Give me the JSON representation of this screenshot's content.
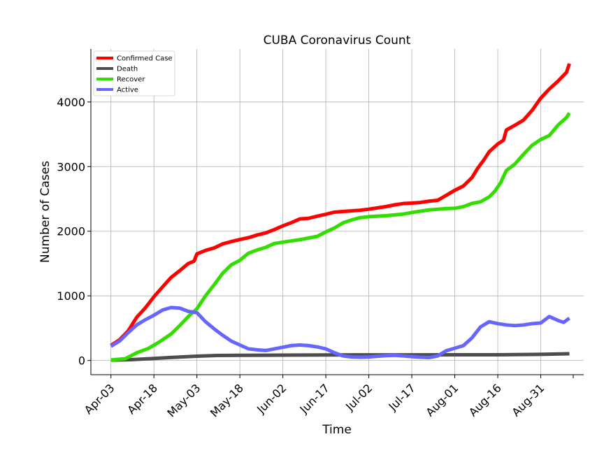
{
  "chart_data": {
    "type": "line",
    "title": "CUBA Coronavirus Count",
    "xlabel": "Time",
    "ylabel": "Number of Cases",
    "xlim": [
      "2020-03-27",
      "2020-09-15"
    ],
    "ylim": [
      -220,
      4820
    ],
    "x_ticks": [
      {
        "date": "2020-04-03",
        "label": "Apr-03"
      },
      {
        "date": "2020-04-18",
        "label": "Apr-18"
      },
      {
        "date": "2020-05-03",
        "label": "May-03"
      },
      {
        "date": "2020-05-18",
        "label": "May-18"
      },
      {
        "date": "2020-06-02",
        "label": "Jun-02"
      },
      {
        "date": "2020-06-17",
        "label": "Jun-17"
      },
      {
        "date": "2020-07-02",
        "label": "Jul-02"
      },
      {
        "date": "2020-07-17",
        "label": "Jul-17"
      },
      {
        "date": "2020-08-01",
        "label": "Aug-01"
      },
      {
        "date": "2020-08-16",
        "label": "Aug-16"
      },
      {
        "date": "2020-08-31",
        "label": "Aug-31"
      }
    ],
    "y_ticks": [
      0,
      1000,
      2000,
      3000,
      4000
    ],
    "grid": true,
    "legend_position": "top-left",
    "series": [
      {
        "name": "Confirmed Case",
        "color": "#ff0000",
        "points": [
          [
            "2020-04-03",
            233
          ],
          [
            "2020-04-06",
            320
          ],
          [
            "2020-04-09",
            457
          ],
          [
            "2020-04-12",
            669
          ],
          [
            "2020-04-15",
            814
          ],
          [
            "2020-04-18",
            986
          ],
          [
            "2020-04-21",
            1137
          ],
          [
            "2020-04-24",
            1285
          ],
          [
            "2020-04-27",
            1389
          ],
          [
            "2020-04-30",
            1501
          ],
          [
            "2020-05-02",
            1537
          ],
          [
            "2020-05-03",
            1649
          ],
          [
            "2020-05-06",
            1703
          ],
          [
            "2020-05-09",
            1741
          ],
          [
            "2020-05-12",
            1804
          ],
          [
            "2020-05-15",
            1840
          ],
          [
            "2020-05-18",
            1872
          ],
          [
            "2020-05-21",
            1900
          ],
          [
            "2020-05-24",
            1941
          ],
          [
            "2020-05-27",
            1974
          ],
          [
            "2020-05-30",
            2025
          ],
          [
            "2020-06-02",
            2083
          ],
          [
            "2020-06-05",
            2133
          ],
          [
            "2020-06-08",
            2191
          ],
          [
            "2020-06-11",
            2200
          ],
          [
            "2020-06-14",
            2233
          ],
          [
            "2020-06-17",
            2262
          ],
          [
            "2020-06-20",
            2295
          ],
          [
            "2020-06-23",
            2305
          ],
          [
            "2020-06-26",
            2315
          ],
          [
            "2020-06-29",
            2325
          ],
          [
            "2020-07-02",
            2341
          ],
          [
            "2020-07-05",
            2361
          ],
          [
            "2020-07-08",
            2381
          ],
          [
            "2020-07-11",
            2408
          ],
          [
            "2020-07-14",
            2428
          ],
          [
            "2020-07-17",
            2435
          ],
          [
            "2020-07-20",
            2445
          ],
          [
            "2020-07-23",
            2465
          ],
          [
            "2020-07-26",
            2478
          ],
          [
            "2020-07-29",
            2555
          ],
          [
            "2020-08-01",
            2633
          ],
          [
            "2020-08-04",
            2700
          ],
          [
            "2020-08-07",
            2829
          ],
          [
            "2020-08-09",
            2975
          ],
          [
            "2020-08-11",
            3093
          ],
          [
            "2020-08-13",
            3229
          ],
          [
            "2020-08-16",
            3350
          ],
          [
            "2020-08-18",
            3408
          ],
          [
            "2020-08-19",
            3566
          ],
          [
            "2020-08-22",
            3640
          ],
          [
            "2020-08-25",
            3720
          ],
          [
            "2020-08-28",
            3870
          ],
          [
            "2020-08-31",
            4059
          ],
          [
            "2020-09-03",
            4200
          ],
          [
            "2020-09-06",
            4321
          ],
          [
            "2020-09-09",
            4459
          ],
          [
            "2020-09-10",
            4593
          ]
        ]
      },
      {
        "name": "Death",
        "color": "#4d4d4d",
        "points": [
          [
            "2020-04-03",
            6
          ],
          [
            "2020-04-10",
            12
          ],
          [
            "2020-04-18",
            32
          ],
          [
            "2020-04-25",
            49
          ],
          [
            "2020-05-03",
            67
          ],
          [
            "2020-05-10",
            77
          ],
          [
            "2020-05-18",
            80
          ],
          [
            "2020-06-01",
            83
          ],
          [
            "2020-06-17",
            85
          ],
          [
            "2020-07-02",
            87
          ],
          [
            "2020-07-17",
            87
          ],
          [
            "2020-08-01",
            88
          ],
          [
            "2020-08-16",
            88
          ],
          [
            "2020-08-31",
            95
          ],
          [
            "2020-09-10",
            105
          ]
        ]
      },
      {
        "name": "Recover",
        "color": "#33dd00",
        "points": [
          [
            "2020-04-03",
            8
          ],
          [
            "2020-04-08",
            27
          ],
          [
            "2020-04-12",
            120
          ],
          [
            "2020-04-16",
            185
          ],
          [
            "2020-04-20",
            290
          ],
          [
            "2020-04-24",
            410
          ],
          [
            "2020-04-27",
            540
          ],
          [
            "2020-04-30",
            680
          ],
          [
            "2020-05-03",
            800
          ],
          [
            "2020-05-06",
            1000
          ],
          [
            "2020-05-09",
            1170
          ],
          [
            "2020-05-12",
            1350
          ],
          [
            "2020-05-15",
            1480
          ],
          [
            "2020-05-18",
            1550
          ],
          [
            "2020-05-21",
            1660
          ],
          [
            "2020-05-24",
            1710
          ],
          [
            "2020-05-27",
            1750
          ],
          [
            "2020-05-30",
            1810
          ],
          [
            "2020-06-02",
            1830
          ],
          [
            "2020-06-08",
            1870
          ],
          [
            "2020-06-14",
            1920
          ],
          [
            "2020-06-17",
            1990
          ],
          [
            "2020-06-20",
            2050
          ],
          [
            "2020-06-23",
            2130
          ],
          [
            "2020-06-26",
            2175
          ],
          [
            "2020-06-29",
            2210
          ],
          [
            "2020-07-02",
            2225
          ],
          [
            "2020-07-08",
            2240
          ],
          [
            "2020-07-14",
            2265
          ],
          [
            "2020-07-17",
            2290
          ],
          [
            "2020-07-23",
            2330
          ],
          [
            "2020-07-29",
            2350
          ],
          [
            "2020-08-01",
            2355
          ],
          [
            "2020-08-04",
            2380
          ],
          [
            "2020-08-07",
            2430
          ],
          [
            "2020-08-10",
            2455
          ],
          [
            "2020-08-13",
            2530
          ],
          [
            "2020-08-15",
            2620
          ],
          [
            "2020-08-17",
            2750
          ],
          [
            "2020-08-19",
            2940
          ],
          [
            "2020-08-22",
            3040
          ],
          [
            "2020-08-25",
            3190
          ],
          [
            "2020-08-28",
            3330
          ],
          [
            "2020-08-31",
            3420
          ],
          [
            "2020-09-03",
            3480
          ],
          [
            "2020-09-06",
            3640
          ],
          [
            "2020-09-09",
            3760
          ],
          [
            "2020-09-10",
            3830
          ]
        ]
      },
      {
        "name": "Active",
        "color": "#6666ff",
        "points": [
          [
            "2020-04-03",
            220
          ],
          [
            "2020-04-06",
            300
          ],
          [
            "2020-04-09",
            430
          ],
          [
            "2020-04-12",
            550
          ],
          [
            "2020-04-15",
            630
          ],
          [
            "2020-04-18",
            700
          ],
          [
            "2020-04-21",
            780
          ],
          [
            "2020-04-24",
            820
          ],
          [
            "2020-04-27",
            810
          ],
          [
            "2020-04-30",
            760
          ],
          [
            "2020-05-03",
            740
          ],
          [
            "2020-05-06",
            600
          ],
          [
            "2020-05-09",
            490
          ],
          [
            "2020-05-12",
            390
          ],
          [
            "2020-05-15",
            300
          ],
          [
            "2020-05-18",
            240
          ],
          [
            "2020-05-21",
            180
          ],
          [
            "2020-05-24",
            165
          ],
          [
            "2020-05-27",
            155
          ],
          [
            "2020-05-30",
            180
          ],
          [
            "2020-06-02",
            205
          ],
          [
            "2020-06-05",
            230
          ],
          [
            "2020-06-08",
            240
          ],
          [
            "2020-06-11",
            230
          ],
          [
            "2020-06-14",
            210
          ],
          [
            "2020-06-17",
            180
          ],
          [
            "2020-06-20",
            120
          ],
          [
            "2020-06-23",
            70
          ],
          [
            "2020-06-26",
            55
          ],
          [
            "2020-06-29",
            50
          ],
          [
            "2020-07-02",
            55
          ],
          [
            "2020-07-05",
            65
          ],
          [
            "2020-07-08",
            75
          ],
          [
            "2020-07-11",
            80
          ],
          [
            "2020-07-14",
            70
          ],
          [
            "2020-07-17",
            60
          ],
          [
            "2020-07-20",
            50
          ],
          [
            "2020-07-23",
            45
          ],
          [
            "2020-07-26",
            70
          ],
          [
            "2020-07-29",
            150
          ],
          [
            "2020-08-01",
            190
          ],
          [
            "2020-08-04",
            230
          ],
          [
            "2020-08-07",
            350
          ],
          [
            "2020-08-10",
            520
          ],
          [
            "2020-08-13",
            600
          ],
          [
            "2020-08-16",
            570
          ],
          [
            "2020-08-19",
            550
          ],
          [
            "2020-08-22",
            540
          ],
          [
            "2020-08-25",
            550
          ],
          [
            "2020-08-28",
            570
          ],
          [
            "2020-08-31",
            580
          ],
          [
            "2020-09-03",
            680
          ],
          [
            "2020-09-06",
            620
          ],
          [
            "2020-09-08",
            590
          ],
          [
            "2020-09-10",
            655
          ]
        ]
      }
    ]
  }
}
